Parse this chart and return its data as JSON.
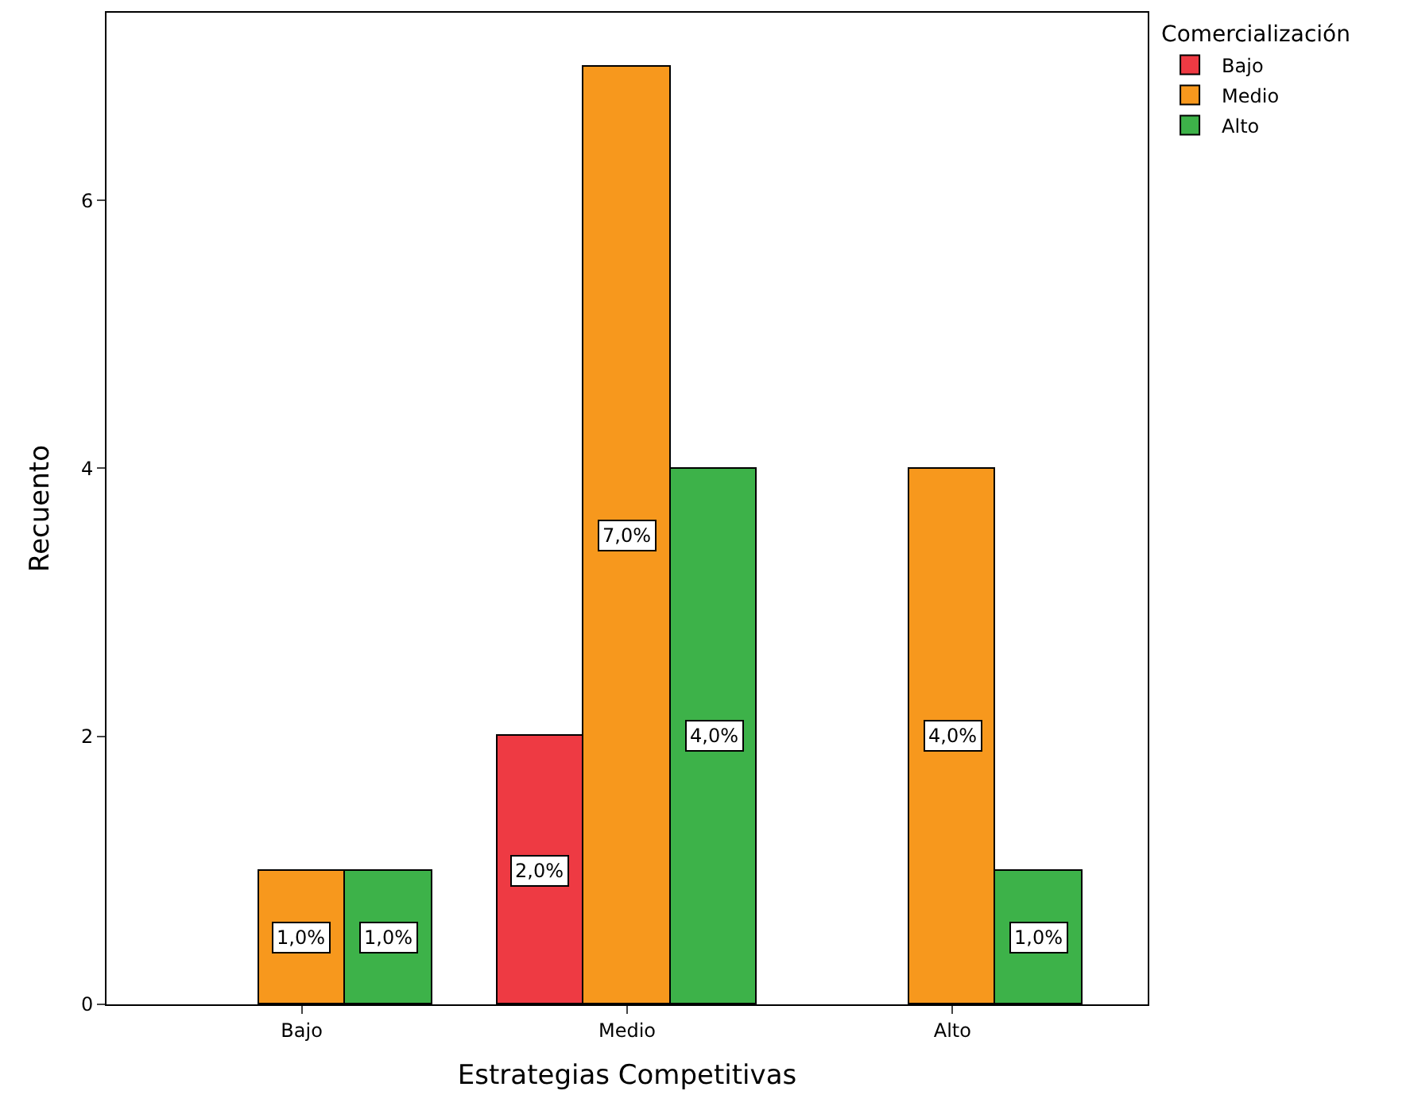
{
  "chart_data": {
    "type": "bar",
    "xlabel": "Estrategias Competitivas",
    "ylabel": "Recuento",
    "legend_title": "Comercialización",
    "categories": [
      "Bajo",
      "Medio",
      "Alto"
    ],
    "series": [
      {
        "name": "Bajo",
        "color": "#ee3a43",
        "values": [
          null,
          2,
          null
        ],
        "value_labels": [
          null,
          "2,0%",
          null
        ]
      },
      {
        "name": "Medio",
        "color": "#f7981d",
        "values": [
          1,
          7,
          4
        ],
        "value_labels": [
          "1,0%",
          "7,0%",
          "4,0%"
        ]
      },
      {
        "name": "Alto",
        "color": "#3db249",
        "values": [
          1,
          4,
          1
        ],
        "value_labels": [
          "1,0%",
          "4,0%",
          "1,0%"
        ]
      }
    ],
    "ylim": [
      0,
      7.4
    ],
    "yticks": [
      0,
      2,
      4,
      6
    ],
    "legend": "top right"
  }
}
